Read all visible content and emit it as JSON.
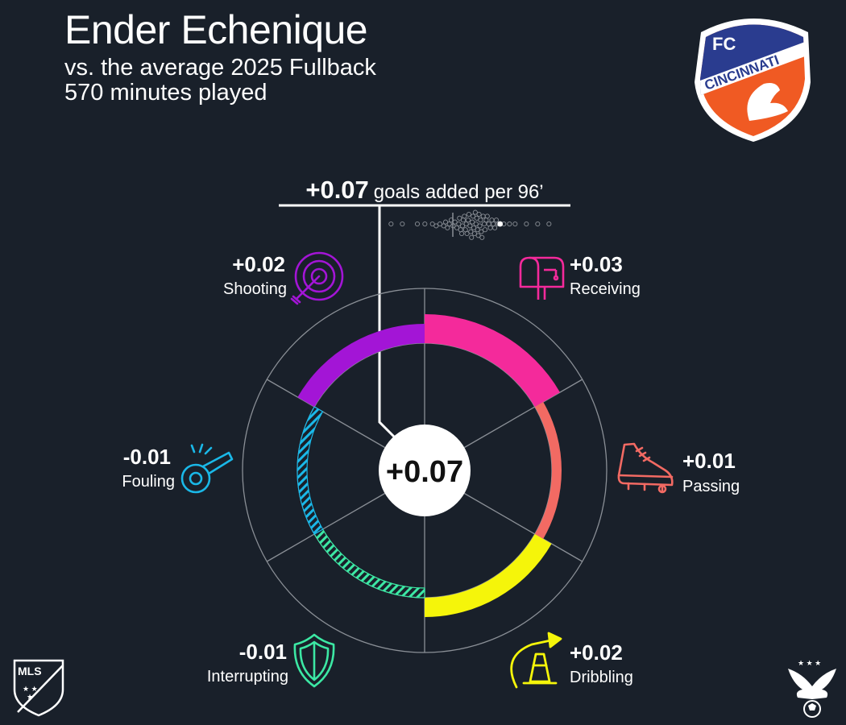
{
  "header": {
    "player_name": "Ender Echenique",
    "comparison": "vs. the average 2025 Fullback",
    "minutes": "570 minutes played"
  },
  "total": {
    "value": "+0.07",
    "caption": "goals added per 96’"
  },
  "club_logo": {
    "text_top": "FC",
    "text_main": "CINCINNATI",
    "colors": {
      "blue": "#2a3c8f",
      "orange": "#f05a23",
      "white": "#ffffff"
    }
  },
  "league_logo": {
    "text": "MLS"
  },
  "chart_data": {
    "type": "radial_bar",
    "center_label": "+0.07",
    "total": 0.07,
    "unit": "goals added per 96’",
    "categories": [
      {
        "name": "Receiving",
        "label": "+0.03",
        "value": 0.03,
        "color": "#f42a9b",
        "icon": "mailbox-icon"
      },
      {
        "name": "Passing",
        "label": "+0.01",
        "value": 0.01,
        "color": "#f26a63",
        "icon": "cleat-icon"
      },
      {
        "name": "Dribbling",
        "label": "+0.02",
        "value": 0.02,
        "color": "#f5f50a",
        "icon": "cone-arrow-icon"
      },
      {
        "name": "Interrupting",
        "label": "-0.01",
        "value": -0.01,
        "color": "#3ce8a4",
        "icon": "shield-icon"
      },
      {
        "name": "Fouling",
        "label": "-0.01",
        "value": -0.01,
        "color": "#1ab8e8",
        "icon": "whistle-icon"
      },
      {
        "name": "Shooting",
        "label": "+0.02",
        "value": 0.02,
        "color": "#a315d6",
        "icon": "target-icon"
      }
    ],
    "distribution": {
      "min": -0.24,
      "max": 0.24,
      "player_value": 0.07,
      "values": [
        -0.22,
        -0.19,
        -0.15,
        -0.13,
        -0.11,
        -0.1,
        -0.09,
        -0.08,
        -0.075,
        -0.07,
        -0.065,
        -0.06,
        -0.055,
        -0.05,
        -0.045,
        -0.04,
        -0.038,
        -0.035,
        -0.032,
        -0.03,
        -0.028,
        -0.025,
        -0.022,
        -0.02,
        -0.018,
        -0.015,
        -0.013,
        -0.01,
        -0.008,
        -0.006,
        -0.004,
        -0.002,
        0,
        0.002,
        0.004,
        0.006,
        0.008,
        0.01,
        0.012,
        0.014,
        0.016,
        0.018,
        0.02,
        0.022,
        0.025,
        0.028,
        0.03,
        0.033,
        0.036,
        0.04,
        0.044,
        0.048,
        0.052,
        0.056,
        0.06,
        0.065,
        0.08,
        0.095,
        0.11,
        0.14,
        0.17,
        0.2
      ]
    }
  }
}
